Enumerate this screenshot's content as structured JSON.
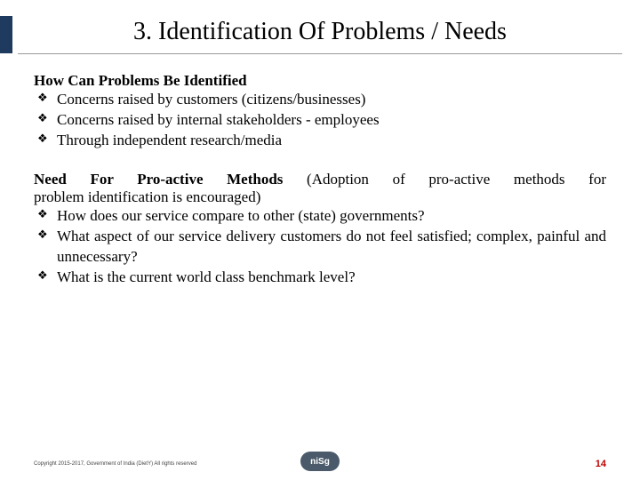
{
  "title": "3. Identification Of Problems / Needs",
  "section1": {
    "heading": "How Can Problems Be Identified",
    "items": [
      "Concerns raised by customers (citizens/businesses)",
      "Concerns raised by internal stakeholders - employees",
      "Through independent research/media"
    ]
  },
  "section2": {
    "heading": "Need For Pro-active Methods",
    "note_line1": " (Adoption of pro-active methods for",
    "note_line2": "problem identification is encouraged)",
    "items": [
      "How does our service compare to other (state) governments?",
      "What aspect of our service delivery customers do not feel satisfied; complex, painful and unnecessary?",
      "What is the current world class benchmark level?"
    ]
  },
  "footer": {
    "copyright": "Copyright 2015-2017, Government of India (DietY) All rights reserved",
    "logo_text": "niSg",
    "page_number": "14"
  },
  "colors": {
    "accent": "#1f3a5f",
    "page_num": "#c00000"
  }
}
